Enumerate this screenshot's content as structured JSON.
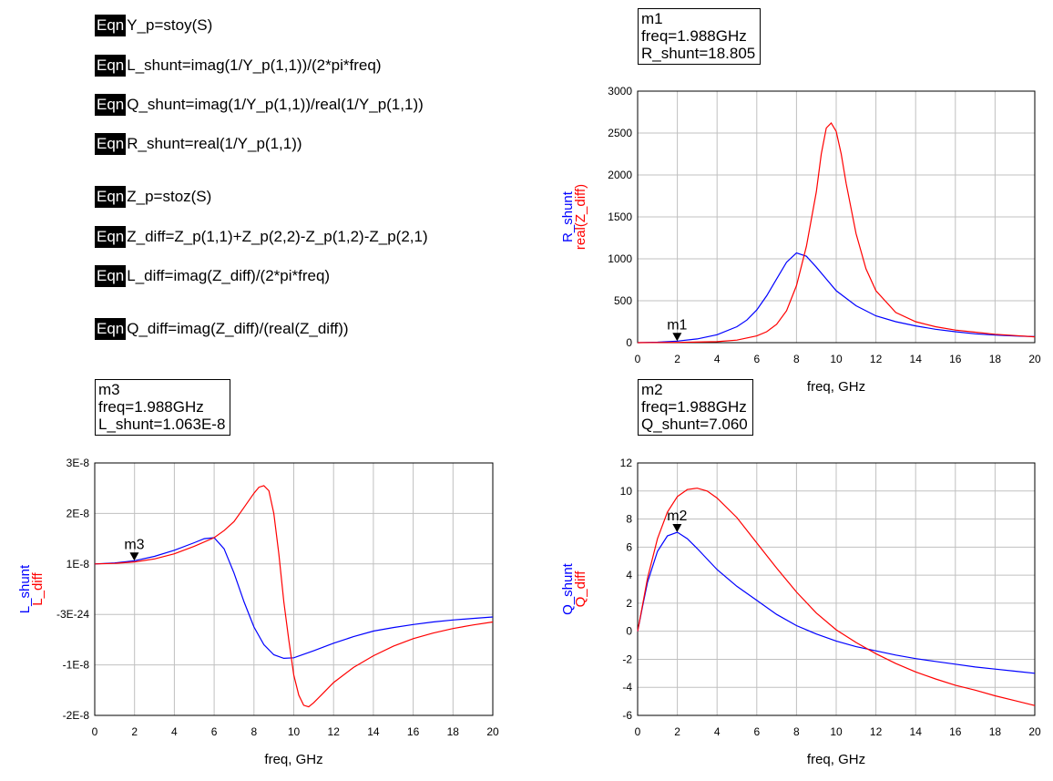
{
  "equations": [
    {
      "badge": "Eqn",
      "text": "Y_p=stoy(S)"
    },
    {
      "badge": "Eqn",
      "text": "L_shunt=imag(1/Y_p(1,1))/(2*pi*freq)"
    },
    {
      "badge": "Eqn",
      "text": "Q_shunt=imag(1/Y_p(1,1))/real(1/Y_p(1,1))"
    },
    {
      "badge": "Eqn",
      "text": "R_shunt=real(1/Y_p(1,1))"
    },
    {
      "badge": "Eqn",
      "text": "Z_p=stoz(S)"
    },
    {
      "badge": "Eqn",
      "text": "Z_diff=Z_p(1,1)+Z_p(2,2)-Z_p(1,2)-Z_p(2,1)"
    },
    {
      "badge": "Eqn",
      "text": "L_diff=imag(Z_diff)/(2*pi*freq)"
    },
    {
      "badge": "Eqn",
      "text": "Q_diff=imag(Z_diff)/(real(Z_diff))"
    }
  ],
  "marker_boxes": [
    {
      "name": "m1",
      "freq": "freq=1.988GHz",
      "value": "R_shunt=18.805"
    },
    {
      "name": "m3",
      "freq": "freq=1.988GHz",
      "value": "L_shunt=1.063E-8"
    },
    {
      "name": "m2",
      "freq": "freq=1.988GHz",
      "value": "Q_shunt=7.060"
    }
  ],
  "colors": {
    "blue": "#0000ff",
    "red": "#ff0000",
    "grid": "#c0c0c0"
  },
  "chart_data": [
    {
      "id": "r-chart",
      "type": "line",
      "xlabel": "freq, GHz",
      "ylabels": [
        {
          "text": "R_shunt",
          "color": "#0000ff"
        },
        {
          "text": "real(Z_diff)",
          "color": "#ff0000"
        }
      ],
      "xlim": [
        0,
        20
      ],
      "ylim": [
        0,
        3000
      ],
      "xticks": [
        "0",
        "2",
        "4",
        "6",
        "8",
        "10",
        "12",
        "14",
        "16",
        "18",
        "20"
      ],
      "yticks": [
        "0",
        "500",
        "1000",
        "1500",
        "2000",
        "2500",
        "3000"
      ],
      "marker": {
        "label": "m1",
        "x": 1.988,
        "y": 18.805
      },
      "series": [
        {
          "name": "R_shunt",
          "color": "#0000ff",
          "x": [
            0,
            1,
            2,
            3,
            4,
            5,
            5.5,
            6,
            6.5,
            7,
            7.5,
            8,
            8.5,
            9,
            9.5,
            10,
            11,
            12,
            13,
            14,
            15,
            16,
            17,
            18,
            19,
            20
          ],
          "y": [
            0,
            5,
            19,
            45,
            95,
            190,
            270,
            390,
            560,
            760,
            960,
            1070,
            1030,
            900,
            760,
            620,
            440,
            320,
            250,
            200,
            160,
            130,
            105,
            90,
            80,
            72
          ]
        },
        {
          "name": "real(Z_diff)",
          "color": "#ff0000",
          "x": [
            0,
            2,
            4,
            5,
            6,
            6.5,
            7,
            7.5,
            8,
            8.5,
            9,
            9.25,
            9.5,
            9.75,
            10,
            10.25,
            10.5,
            11,
            11.5,
            12,
            13,
            14,
            15,
            16,
            17,
            18,
            19,
            20
          ],
          "y": [
            0,
            3,
            12,
            30,
            80,
            130,
            220,
            380,
            680,
            1150,
            1800,
            2250,
            2560,
            2620,
            2520,
            2250,
            1900,
            1300,
            880,
            620,
            360,
            250,
            190,
            150,
            125,
            100,
            85,
            70
          ]
        }
      ]
    },
    {
      "id": "l-chart",
      "type": "line",
      "xlabel": "freq, GHz",
      "ylabels": [
        {
          "text": "L_shunt",
          "color": "#0000ff"
        },
        {
          "text": "L_diff",
          "color": "#ff0000"
        }
      ],
      "xlim": [
        0,
        20
      ],
      "ylim": [
        -2e-08,
        3e-08
      ],
      "xticks": [
        "0",
        "2",
        "4",
        "6",
        "8",
        "10",
        "12",
        "14",
        "16",
        "18",
        "20"
      ],
      "yticks": [
        "-2E-8",
        "-1E-8",
        "-3E-24",
        "1E-8",
        "2E-8",
        "3E-8"
      ],
      "marker": {
        "label": "m3",
        "x": 1.988,
        "y": 1.063e-08
      },
      "series": [
        {
          "name": "L_shunt",
          "color": "#0000ff",
          "x": [
            0,
            1,
            2,
            3,
            4,
            5,
            5.5,
            6,
            6.5,
            7,
            7.5,
            8,
            8.5,
            9,
            9.5,
            10,
            11,
            12,
            13,
            14,
            15,
            16,
            17,
            18,
            19,
            20
          ],
          "y": [
            1e-08,
            1.02e-08,
            1.063e-08,
            1.15e-08,
            1.27e-08,
            1.42e-08,
            1.5e-08,
            1.52e-08,
            1.3e-08,
            8.2e-09,
            2.5e-09,
            -2.5e-09,
            -6e-09,
            -8e-09,
            -8.7e-09,
            -8.6e-09,
            -7.2e-09,
            -5.7e-09,
            -4.4e-09,
            -3.3e-09,
            -2.6e-09,
            -2e-09,
            -1.5e-09,
            -1.1e-09,
            -8e-10,
            -5e-10
          ]
        },
        {
          "name": "L_diff",
          "color": "#ff0000",
          "x": [
            0,
            1,
            2,
            3,
            4,
            5,
            6,
            6.5,
            7,
            7.5,
            8,
            8.25,
            8.5,
            8.75,
            9,
            9.25,
            9.5,
            9.75,
            10,
            10.25,
            10.5,
            10.75,
            11,
            11.5,
            12,
            13,
            14,
            15,
            16,
            17,
            18,
            19,
            20
          ],
          "y": [
            1e-08,
            1.01e-08,
            1.04e-08,
            1.1e-08,
            1.2e-08,
            1.35e-08,
            1.52e-08,
            1.66e-08,
            1.84e-08,
            2.12e-08,
            2.4e-08,
            2.52e-08,
            2.55e-08,
            2.45e-08,
            2e-08,
            1.2e-08,
            2.5e-09,
            -5e-09,
            -1.2e-08,
            -1.6e-08,
            -1.8e-08,
            -1.83e-08,
            -1.75e-08,
            -1.55e-08,
            -1.35e-08,
            -1.05e-08,
            -8.2e-09,
            -6.3e-09,
            -4.8e-09,
            -3.7e-09,
            -2.8e-09,
            -2.1e-09,
            -1.5e-09
          ]
        }
      ]
    },
    {
      "id": "q-chart",
      "type": "line",
      "xlabel": "freq, GHz",
      "ylabels": [
        {
          "text": "Q_shunt",
          "color": "#0000ff"
        },
        {
          "text": "Q_diff",
          "color": "#ff0000"
        }
      ],
      "xlim": [
        0,
        20
      ],
      "ylim": [
        -6,
        12
      ],
      "xticks": [
        "0",
        "2",
        "4",
        "6",
        "8",
        "10",
        "12",
        "14",
        "16",
        "18",
        "20"
      ],
      "yticks": [
        "-6",
        "-4",
        "-2",
        "0",
        "2",
        "4",
        "6",
        "8",
        "10",
        "12"
      ],
      "marker": {
        "label": "m2",
        "x": 1.988,
        "y": 7.06
      },
      "series": [
        {
          "name": "Q_shunt",
          "color": "#0000ff",
          "x": [
            0,
            0.25,
            0.5,
            1,
            1.5,
            2,
            2.5,
            3,
            4,
            5,
            6,
            7,
            8,
            9,
            10,
            11,
            12,
            13,
            14,
            15,
            16,
            17,
            18,
            19,
            20
          ],
          "y": [
            0,
            1.8,
            3.5,
            5.7,
            6.8,
            7.06,
            6.6,
            5.9,
            4.4,
            3.2,
            2.2,
            1.2,
            0.4,
            -0.2,
            -0.7,
            -1.1,
            -1.4,
            -1.7,
            -1.95,
            -2.15,
            -2.35,
            -2.55,
            -2.7,
            -2.85,
            -3.0
          ]
        },
        {
          "name": "Q_diff",
          "color": "#ff0000",
          "x": [
            0,
            0.25,
            0.5,
            1,
            1.5,
            2,
            2.5,
            3,
            3.5,
            4,
            5,
            6,
            7,
            8,
            9,
            10,
            11,
            12,
            13,
            14,
            15,
            16,
            17,
            18,
            19,
            20
          ],
          "y": [
            0,
            1.9,
            3.8,
            6.6,
            8.5,
            9.6,
            10.1,
            10.2,
            10.0,
            9.5,
            8.1,
            6.3,
            4.5,
            2.8,
            1.3,
            0.1,
            -0.8,
            -1.6,
            -2.3,
            -2.9,
            -3.4,
            -3.85,
            -4.2,
            -4.6,
            -4.95,
            -5.3
          ]
        }
      ]
    }
  ]
}
